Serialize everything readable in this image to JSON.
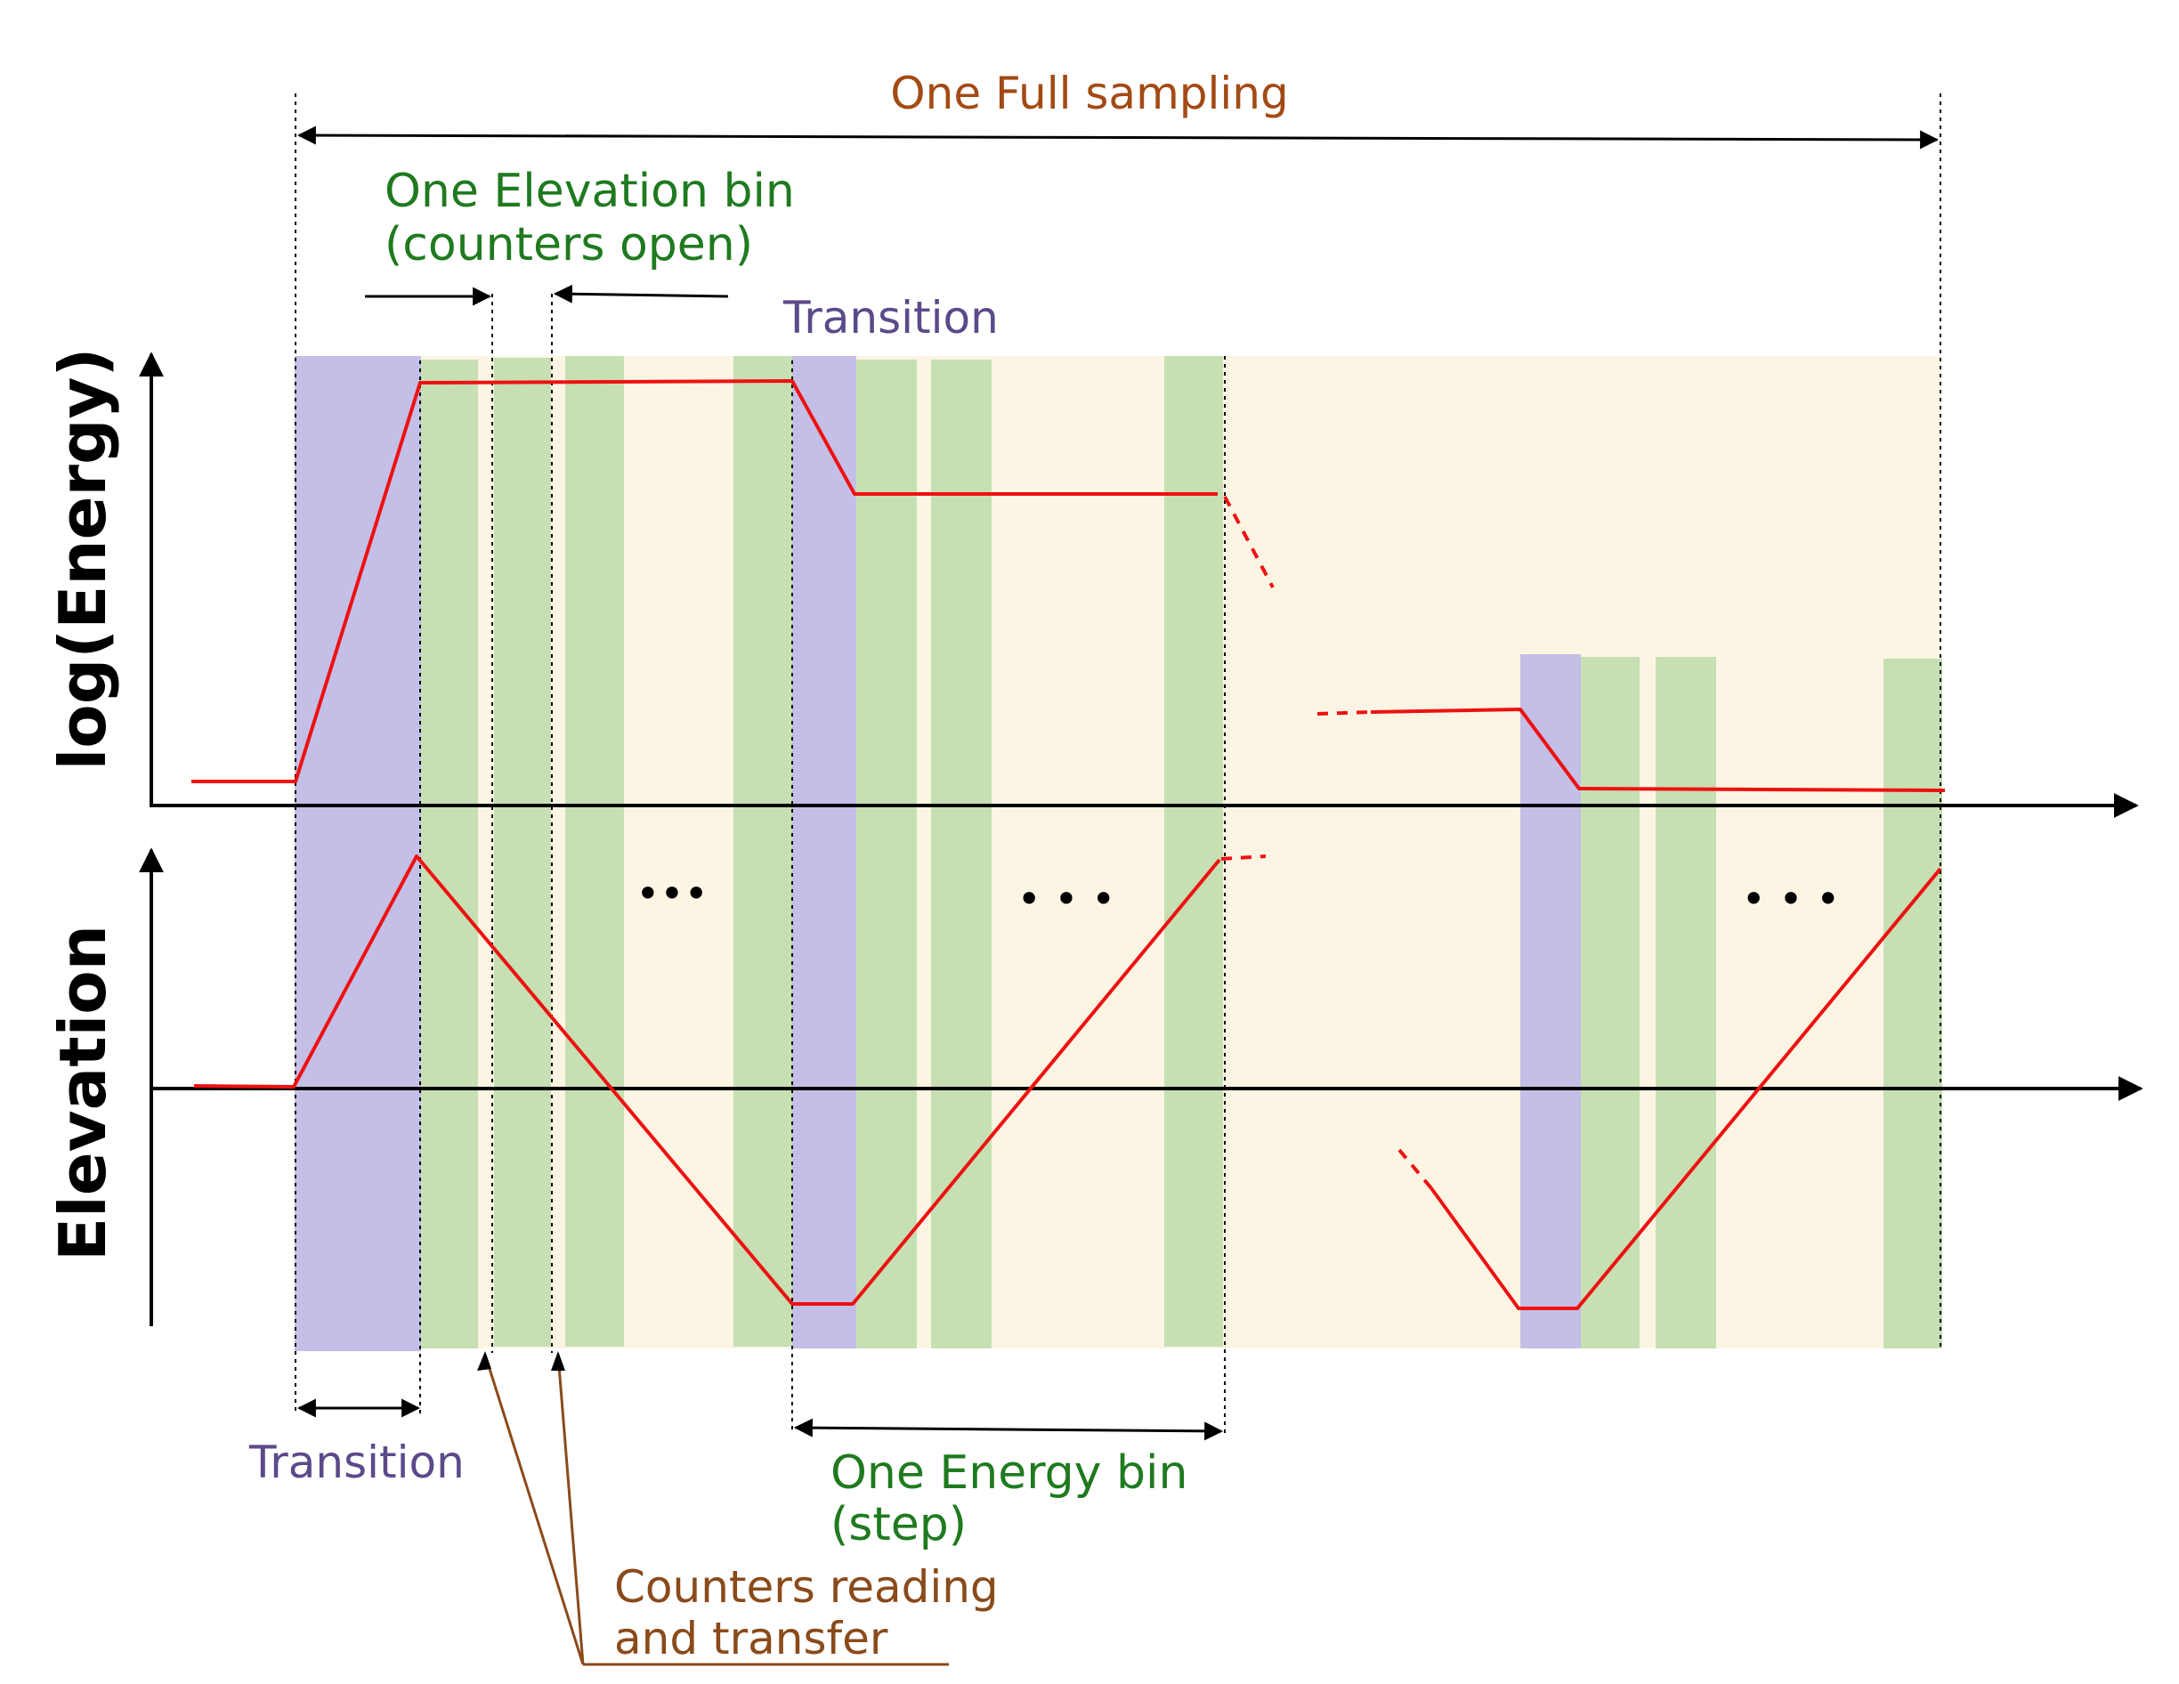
{
  "diagram": {
    "labels": {
      "full_sampling": "One Full sampling",
      "elevation_bin_line1": "One Elevation bin",
      "elevation_bin_line2": "(counters open)",
      "transition_top": "Transition",
      "transition_bottom": "Transition",
      "energy_bin_line1": "One Energy bin",
      "energy_bin_line2": "(step)",
      "counters_line1": "Counters reading",
      "counters_line2": "and transfer"
    },
    "axes": {
      "top_ylabel": "log(Energy)",
      "bottom_ylabel": "Elevation"
    },
    "ellipses": [
      "•••",
      "•  •  •",
      "•  •  •"
    ],
    "colors": {
      "transition_band": "#c4bfe6",
      "counter_band": "#c6dfb3",
      "background_band": "#fdf5e4",
      "curve": "#ee1111",
      "full_sampling_text": "#a34a14",
      "elevation_bin_text": "#1f7a1f",
      "transition_text": "#5b4a8a",
      "counters_text": "#8a4a1a",
      "energy_bin_text": "#1f7a1f"
    },
    "icons": {
      "double_arrow": "double-arrow-icon",
      "pointer_arrow": "pointer-arrow-icon"
    }
  }
}
